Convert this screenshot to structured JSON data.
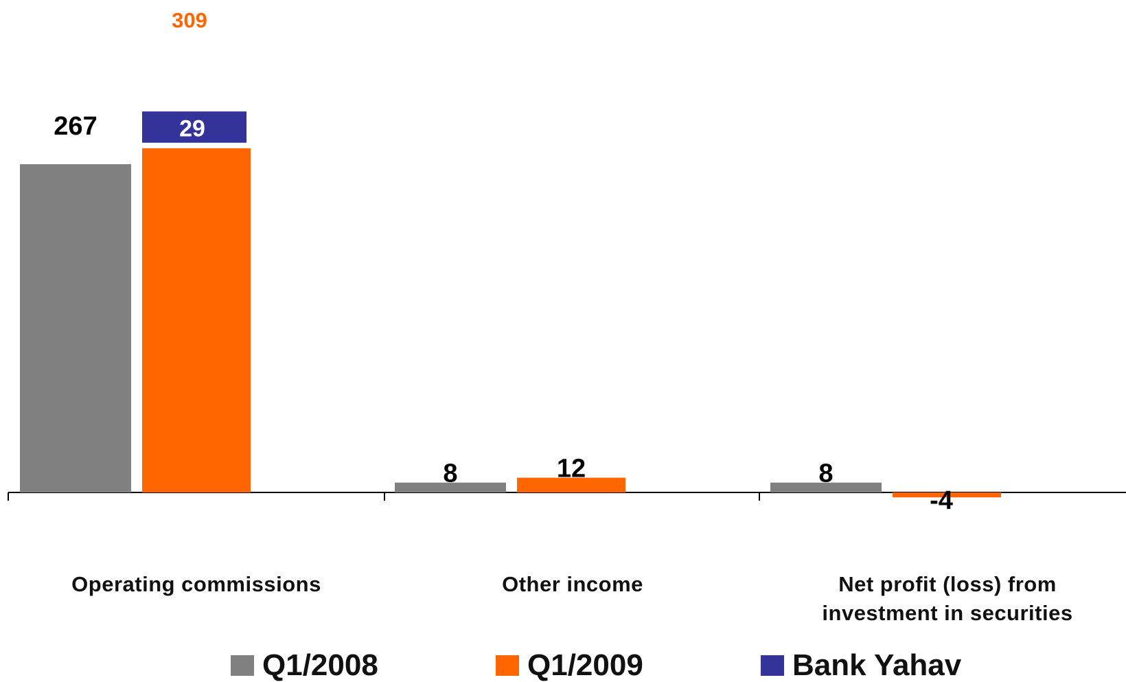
{
  "chart_data": {
    "type": "bar",
    "categories": [
      "Operating commissions",
      "Other income",
      "Net profit (loss) from\ninvestment in securities"
    ],
    "series": [
      {
        "name": "Q1/2008",
        "color": "#808080",
        "values": [
          267,
          8,
          8
        ]
      },
      {
        "name": "Q1/2009",
        "color": "#ff6600",
        "values": [
          280,
          12,
          -4
        ]
      },
      {
        "name": "Bank Yahav",
        "color": "#333399",
        "values": [
          29,
          null,
          null
        ]
      }
    ],
    "stack": {
      "base_series": "Q1/2009",
      "top_series": "Bank Yahav",
      "category": "Operating commissions",
      "total": 309
    },
    "data_labels": {
      "q1_2008": [
        "267",
        "8",
        "8"
      ],
      "q1_2009": [
        "280",
        "12",
        "-4"
      ],
      "bank_yahav": "29",
      "total": "309"
    },
    "ylim": [
      -10,
      320
    ],
    "grid": false,
    "legend_position": "bottom"
  }
}
